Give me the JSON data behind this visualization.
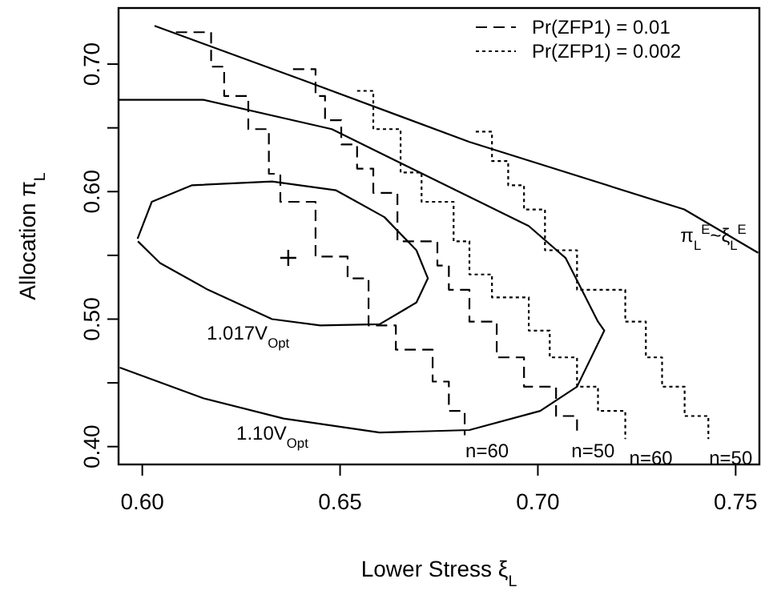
{
  "chart_data": {
    "type": "line",
    "xlabel": "Lower Stress  ξ$_{L}$",
    "ylabel": "Allocation π$_{L}$",
    "xlim": [
      0.594,
      0.756
    ],
    "ylim": [
      0.386,
      0.744
    ],
    "xticks": [
      {
        "value": 0.6,
        "label": "0.60"
      },
      {
        "value": 0.65,
        "label": "0.65"
      },
      {
        "value": 0.7,
        "label": "0.70"
      },
      {
        "value": 0.75,
        "label": "0.75"
      }
    ],
    "yticks": [
      {
        "value": 0.4,
        "label": "0.40"
      },
      {
        "value": 0.45,
        "label": null
      },
      {
        "value": 0.5,
        "label": "0.50"
      },
      {
        "value": 0.55,
        "label": null
      },
      {
        "value": 0.6,
        "label": "0.60"
      },
      {
        "value": 0.65,
        "label": null
      },
      {
        "value": 0.7,
        "label": "0.70"
      }
    ],
    "grid": false,
    "legend": "top right",
    "series": [
      {
        "color": "#000000",
        "line_style": "solid",
        "x": [
          0.6031,
          0.641,
          0.6827,
          0.737,
          0.7557
        ],
        "values": [
          0.73,
          0.687,
          0.639,
          0.586,
          0.552
        ]
      },
      {
        "color": "#000000",
        "line_style": "solid",
        "x": [
          0.594,
          0.6154,
          0.6479,
          0.6977,
          0.707,
          0.7152,
          0.7168,
          0.7099,
          0.7006,
          0.6827,
          0.66,
          0.6357,
          0.6154,
          0.5943
        ],
        "values": [
          0.672,
          0.672,
          0.649,
          0.573,
          0.548,
          0.498,
          0.491,
          0.447,
          0.428,
          0.413,
          0.411,
          0.422,
          0.438,
          0.462
        ]
      },
      {
        "color": "#000000",
        "line_style": "solid",
        "x": [
          0.5988,
          0.6024,
          0.6126,
          0.6328,
          0.649,
          0.6612,
          0.6693,
          0.6722,
          0.6693,
          0.66,
          0.645,
          0.6328,
          0.6166,
          0.6045,
          0.5989
        ],
        "values": [
          0.563,
          0.592,
          0.605,
          0.608,
          0.601,
          0.58,
          0.554,
          0.532,
          0.513,
          0.496,
          0.495,
          0.5,
          0.523,
          0.544,
          0.561
        ]
      },
      {
        "type": "step",
        "name": "Pr(ZFP1) = 0.01",
        "color": "#000000",
        "line_style": "dashed",
        "x": [
          0.6085,
          0.6174,
          0.6207,
          0.6268,
          0.632,
          0.6349,
          0.6438,
          0.6519,
          0.6572,
          0.6641,
          0.6734,
          0.6775,
          0.6815
        ],
        "values": [
          0.725,
          0.698,
          0.675,
          0.649,
          0.614,
          0.592,
          0.549,
          0.532,
          0.495,
          0.476,
          0.451,
          0.428,
          0.409
        ]
      },
      {
        "type": "step",
        "color": "#000000",
        "line_style": "dashed",
        "x": [
          0.6381,
          0.6438,
          0.6462,
          0.6503,
          0.6543,
          0.6584,
          0.6645,
          0.6746,
          0.6775,
          0.6827,
          0.6896,
          0.6965,
          0.7046,
          0.7099
        ],
        "values": [
          0.696,
          0.675,
          0.656,
          0.637,
          0.618,
          0.599,
          0.561,
          0.542,
          0.523,
          0.498,
          0.47,
          0.447,
          0.424,
          0.409
        ]
      },
      {
        "type": "step",
        "name": "Pr(ZFP1) = 0.002",
        "color": "#000000",
        "line_style": "dotted",
        "x": [
          0.6543,
          0.6584,
          0.6653,
          0.6706,
          0.6787,
          0.6827,
          0.6884,
          0.6977,
          0.703,
          0.7099,
          0.7152,
          0.7221
        ],
        "values": [
          0.679,
          0.649,
          0.615,
          0.592,
          0.561,
          0.535,
          0.517,
          0.491,
          0.47,
          0.447,
          0.428,
          0.406
        ]
      },
      {
        "type": "step",
        "color": "#000000",
        "line_style": "dotted",
        "x": [
          0.6843,
          0.6884,
          0.6925,
          0.6965,
          0.7018,
          0.7099,
          0.7221,
          0.7273,
          0.7314,
          0.7371,
          0.7431
        ],
        "values": [
          0.647,
          0.624,
          0.605,
          0.586,
          0.554,
          0.523,
          0.498,
          0.47,
          0.447,
          0.424,
          0.406
        ]
      },
      {
        "type": "scatter",
        "color": "#000000",
        "marker": "cross",
        "x": [
          0.6369
        ],
        "values": [
          0.548
        ]
      }
    ],
    "annotations": [
      {
        "text": "π$_{L}$$^{E}$~ξ$_{L}$$^{E}$",
        "x": 0.7557,
        "y": 0.552
      },
      {
        "text": "1.017V$_{Opt}$",
        "x": 0.6328,
        "y": 0.5
      },
      {
        "text": "1.10V$_{Opt}$",
        "x": 0.6357,
        "y": 0.422
      },
      {
        "text": "n=60",
        "x": 0.6815,
        "y": 0.409
      },
      {
        "text": "n=50",
        "x": 0.7099,
        "y": 0.409
      },
      {
        "text": "n=60",
        "x": 0.7221,
        "y": 0.406
      },
      {
        "text": "n=50",
        "x": 0.7431,
        "y": 0.406
      }
    ]
  }
}
